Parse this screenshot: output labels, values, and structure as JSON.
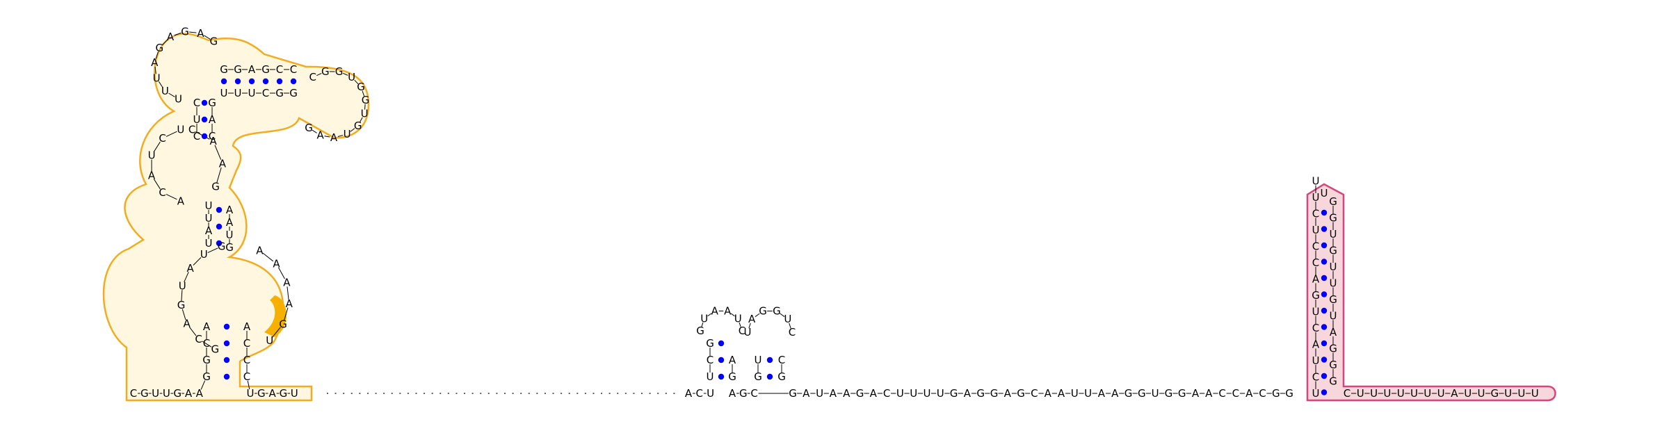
{
  "colors": {
    "background": "#ffffff",
    "nucleotide_text": "#000000",
    "base_pair_dot": "#0000ff",
    "backbone_link": "#000000",
    "domain_orange_outline": "#f2ac1f",
    "domain_orange_fill": "#fff7e0",
    "domain_orange_highlight": "#f5b000",
    "domain_pink_outline": "#d6457c",
    "domain_pink_fill": "#f8d7dc"
  },
  "sequence": {
    "five_prime_tail": "CGUUGAA",
    "hairpin_left_3prime": "UGAGU",
    "spacer_dots_count": 44,
    "small_region_entry": "ACU",
    "small_region_mid": "AGC",
    "main_chain": "GAUAAGACUUUUGAGGAGCAAUUAAGGUGGAACCACGG",
    "pink_stem_5prime": "UCUACUGACCUCUU",
    "pink_loop": "U",
    "pink_stem_3prime": "GGUGUUGUAGGG",
    "three_prime_tail": "CUUUUUUUAUUGUUU"
  },
  "hairpins": [
    {
      "label": "small-hairpin-1",
      "stem_left": "UCG",
      "loop": "GUAAUC",
      "stem_right": "GA"
    },
    {
      "label": "small-hairpin-2",
      "stem_left": "GU",
      "loop": "UAGGUC",
      "stem_right": "GC"
    }
  ],
  "orange_structure_letters": "GGCAGCAUGAUUACUAUCUUUAGAGAGGGAGCCCGGUGGUGUAAGGCUUUGACAACGUAAGUGAAAACUAACCCAGUGAGU",
  "highlighted_nucleotides": [
    "C",
    "U",
    "A"
  ]
}
